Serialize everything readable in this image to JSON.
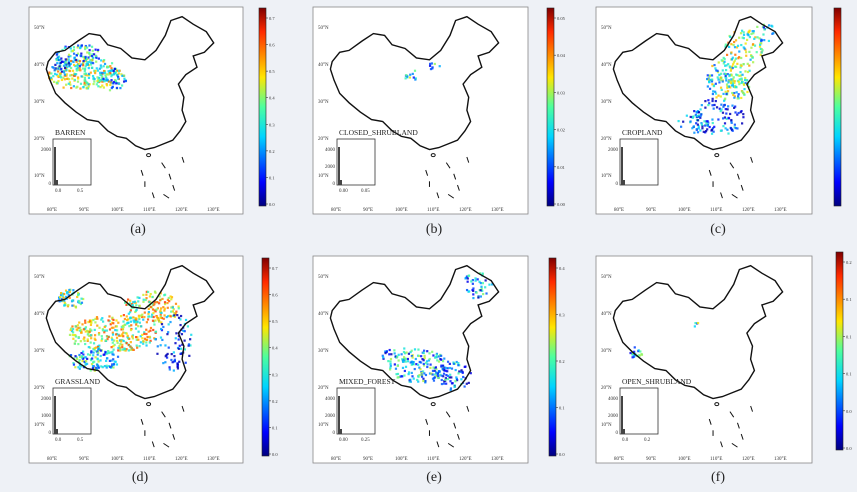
{
  "figure": {
    "panels": [
      {
        "caption": "(a)",
        "landcover": "BARREN",
        "cbar_ticks": [
          "0.7",
          "0.6",
          "0.5",
          "0.4",
          "0.3",
          "0.2",
          "0.1",
          "0.0"
        ],
        "cbar_max": 0.75,
        "inset": {
          "yticks": [
            "2000",
            "0"
          ],
          "xticks": [
            "0.0",
            "0.5"
          ]
        }
      },
      {
        "caption": "(b)",
        "landcover": "CLOSED_SHRUBLAND",
        "cbar_ticks": [
          "0.05",
          "0.04",
          "0.03",
          "0.02",
          "0.01",
          "0.00"
        ],
        "cbar_max": 0.057,
        "inset": {
          "yticks": [
            "4000",
            "2000",
            "0"
          ],
          "xticks": [
            "0.00",
            "0.05"
          ]
        }
      },
      {
        "caption": "(c)",
        "landcover": "CROPLAND",
        "cbar_ticks": [],
        "cbar_max": 1,
        "inset": {
          "yticks": [
            "2000",
            "0"
          ],
          "xticks": []
        }
      },
      {
        "caption": "(d)",
        "landcover": "GRASSLAND",
        "cbar_ticks": [
          "0.7",
          "0.6",
          "0.5",
          "0.4",
          "0.3",
          "0.2",
          "0.1",
          "0.0"
        ],
        "cbar_max": 0.72,
        "inset": {
          "yticks": [
            "2000",
            "1000",
            "0"
          ],
          "xticks": [
            "0.0",
            "0.5"
          ]
        }
      },
      {
        "caption": "(e)",
        "landcover": "MIXED_FOREST",
        "cbar_ticks": [
          "0.4",
          "0.3",
          "0.2",
          "0.1",
          "0.0"
        ],
        "cbar_max": 0.47,
        "inset": {
          "yticks": [
            "4000",
            "2000",
            "0"
          ],
          "xticks": [
            "0.00",
            "0.25"
          ]
        }
      },
      {
        "caption": "(f)",
        "landcover": "OPEN_SHRUBLAND",
        "cbar_ticks": [
          "0.2",
          "0.1",
          "0.1",
          "0.1",
          "0.0",
          "0.0"
        ],
        "cbar_max": 1,
        "inset": {
          "yticks": [
            "4000",
            "2000",
            "0"
          ],
          "xticks": [
            "0.0",
            "0.2"
          ]
        }
      }
    ],
    "lat_labels": [
      "50°N",
      "40°N",
      "30°N",
      "20°N",
      "10°N"
    ],
    "lon_labels": [
      "80°E",
      "90°E",
      "100°E",
      "110°E",
      "120°E",
      "130°E"
    ]
  },
  "chart_data": [
    {
      "type": "heatmap",
      "title": "BARREN",
      "colorbar_range": [
        0.0,
        0.75
      ],
      "colormap": "jet",
      "xlabel_ticks": [
        "80°E",
        "90°E",
        "100°E",
        "110°E",
        "120°E",
        "130°E"
      ],
      "ylabel_ticks": [
        "50°N",
        "40°N",
        "30°N",
        "20°N",
        "10°N"
      ]
    },
    {
      "type": "heatmap",
      "title": "CLOSED_SHRUBLAND",
      "colorbar_range": [
        0.0,
        0.057
      ],
      "colormap": "jet"
    },
    {
      "type": "heatmap",
      "title": "CROPLAND",
      "colormap": "jet"
    },
    {
      "type": "heatmap",
      "title": "GRASSLAND",
      "colorbar_range": [
        0.0,
        0.72
      ],
      "colormap": "jet"
    },
    {
      "type": "heatmap",
      "title": "MIXED_FOREST",
      "colorbar_range": [
        0.0,
        0.47
      ],
      "colormap": "jet"
    },
    {
      "type": "heatmap",
      "title": "OPEN_SHRUBLAND",
      "colormap": "jet"
    }
  ],
  "colors": {
    "background": "#eef1f6",
    "map_frame": "#ffffff",
    "outline": "#111111",
    "low": "#2a3ccf",
    "mid": "#3cd37a",
    "high": "#e0392a"
  }
}
